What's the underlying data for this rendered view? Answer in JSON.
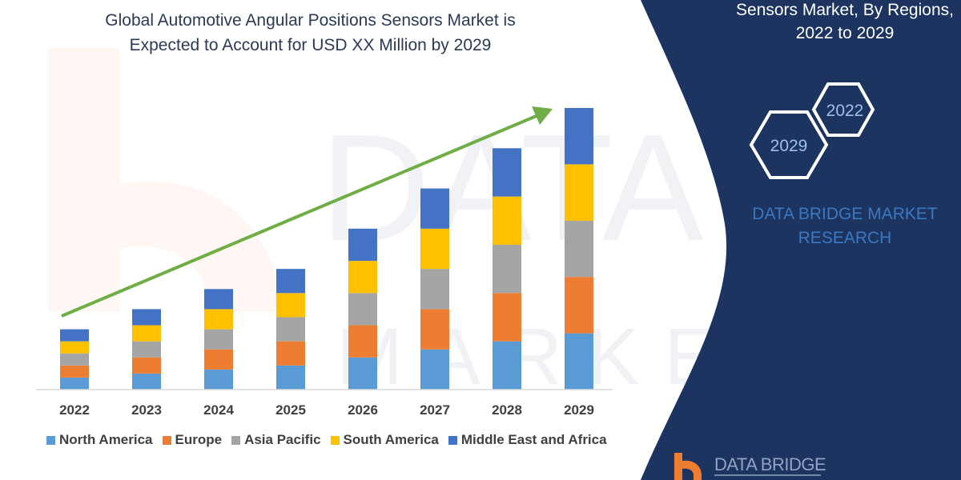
{
  "title": [
    "Global Automotive Angular Positions Sensors Market is",
    "Expected to Account for USD XX Million by 2029"
  ],
  "side_panel": {
    "title": [
      "Sensors Market, By Regions,",
      "2022 to 2029"
    ],
    "hex_labels": [
      "2022",
      "2029"
    ],
    "brand": [
      "DATA BRIDGE MARKET",
      "RESEARCH"
    ],
    "logo_text": "DATA BRIDGE",
    "background": "#1d3461"
  },
  "chart_data": {
    "type": "bar",
    "stacked": true,
    "categories": [
      "2022",
      "2023",
      "2024",
      "2025",
      "2026",
      "2027",
      "2028",
      "2029"
    ],
    "series": [
      {
        "name": "North America",
        "color": "#5b9bd5",
        "values": [
          15,
          20,
          25,
          30,
          40,
          50,
          60,
          70
        ]
      },
      {
        "name": "Europe",
        "color": "#ed7d31",
        "values": [
          15,
          20,
          25,
          30,
          40,
          50,
          60,
          70
        ]
      },
      {
        "name": "Asia Pacific",
        "color": "#a5a5a5",
        "values": [
          15,
          20,
          25,
          30,
          40,
          50,
          60,
          70
        ]
      },
      {
        "name": "South America",
        "color": "#ffc000",
        "values": [
          15,
          20,
          25,
          30,
          40,
          50,
          60,
          70
        ]
      },
      {
        "name": "Middle East and Africa",
        "color": "#4472c4",
        "values": [
          15,
          20,
          25,
          30,
          40,
          50,
          60,
          70
        ]
      }
    ],
    "trend_arrow_color": "#70ad47",
    "legend_position": "bottom",
    "grid": false,
    "ylim": [
      0,
      350
    ],
    "xlabel": "",
    "ylabel": ""
  }
}
